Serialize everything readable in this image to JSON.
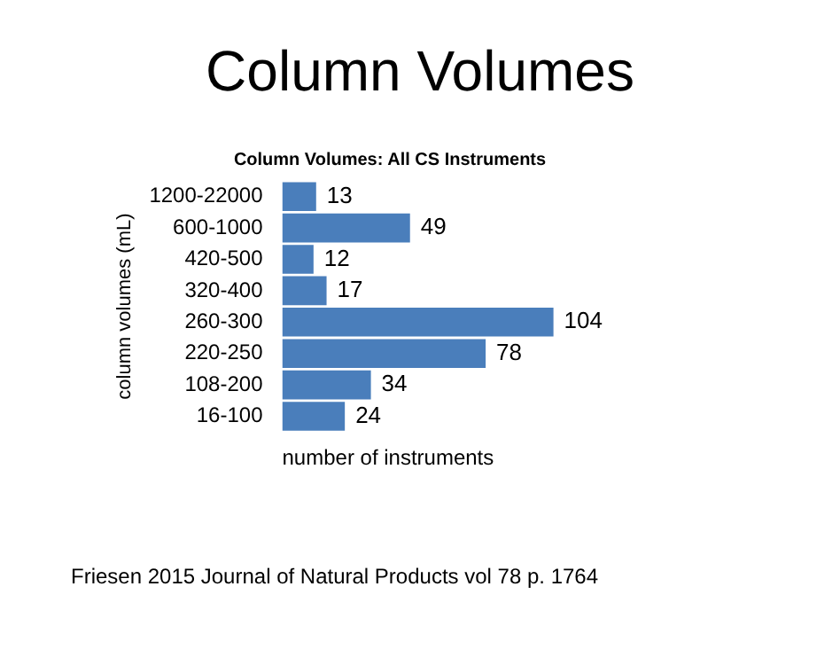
{
  "chart_data": {
    "type": "bar",
    "orientation": "horizontal",
    "title": "Column Volumes",
    "subtitle": "Column Volumes: All CS Instruments",
    "xlabel": "number of instruments",
    "ylabel": "column volumes (mL)",
    "categories": [
      "1200-22000",
      "600-1000",
      "420-500",
      "320-400",
      "260-300",
      "220-250",
      "108-200",
      "16-100"
    ],
    "values": [
      13,
      49,
      12,
      17,
      104,
      78,
      34,
      24
    ],
    "color": "#4a7ebb",
    "data_labels": true,
    "grid": false,
    "legend": false,
    "tick_labels": "y",
    "annotations": [
      "Friesen 2015 Journal of Natural Products  vol 78 p. 1764"
    ]
  }
}
